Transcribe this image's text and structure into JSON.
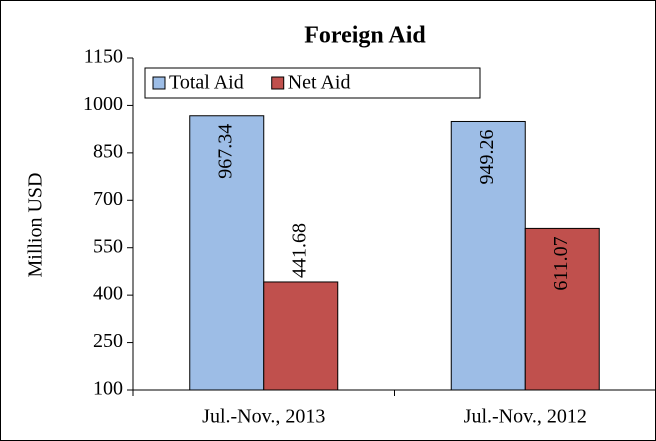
{
  "chart_data": {
    "type": "bar",
    "title": "Foreign Aid",
    "y_label": "Million USD",
    "categories": [
      "Jul.-Nov., 2013",
      "Jul.-Nov., 2012"
    ],
    "series": [
      {
        "name": "Total Aid",
        "color": "#9dbde6",
        "values": [
          967.34,
          949.26
        ]
      },
      {
        "name": "Net Aid",
        "color": "#c0504d",
        "values": [
          441.68,
          611.07
        ]
      }
    ],
    "ylim": [
      100,
      1150
    ],
    "yticks": [
      100,
      250,
      400,
      550,
      700,
      850,
      1000,
      1150
    ],
    "grid": false,
    "legend": "top-left"
  }
}
